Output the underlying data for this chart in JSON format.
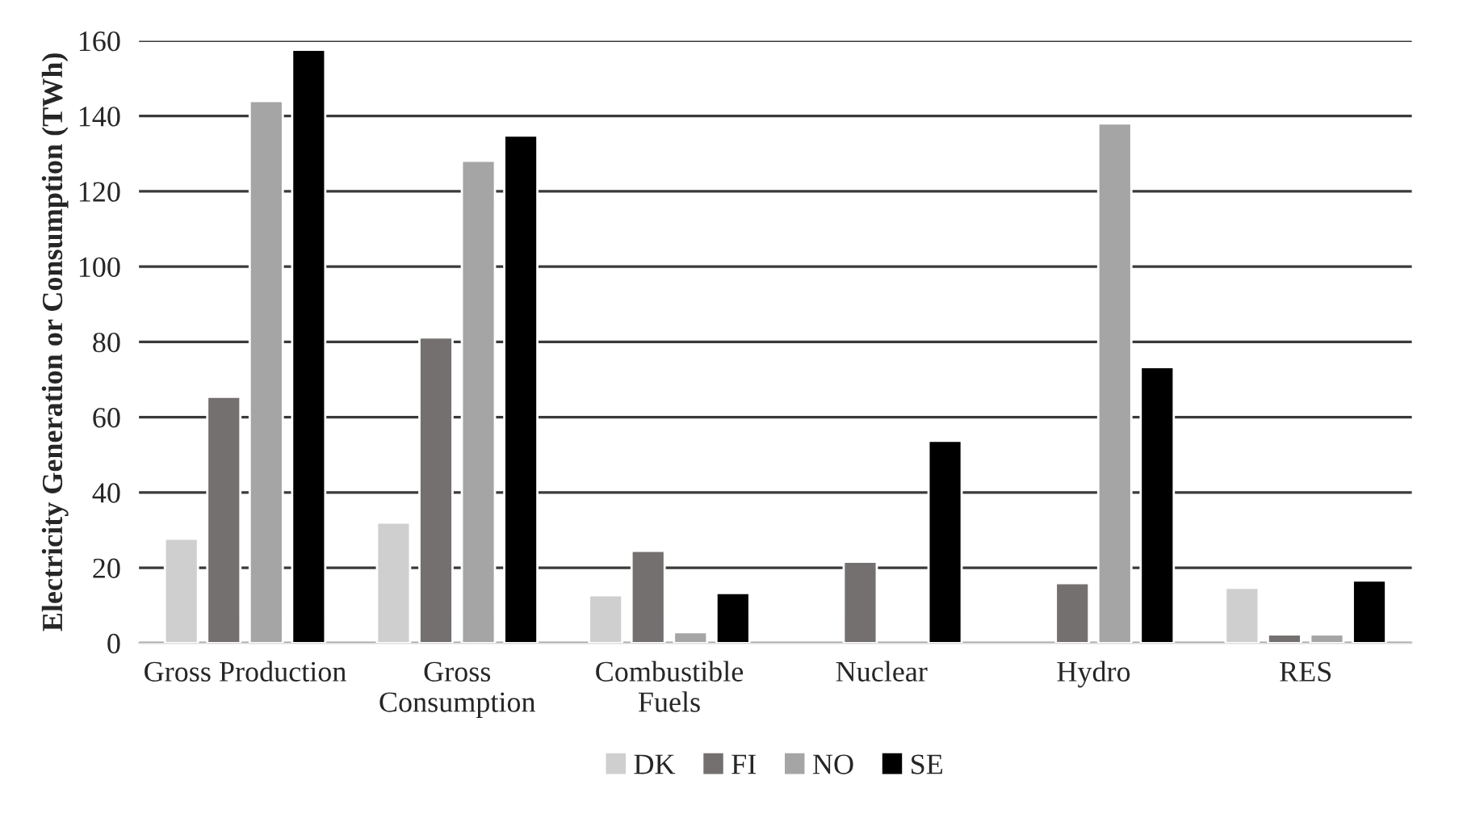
{
  "chart_data": {
    "type": "bar",
    "ylabel": "Electricity Generation or Consumption (TWh)",
    "categories": [
      "Gross Production",
      "Gross\nConsumption",
      "Combustible\nFuels",
      "Nuclear",
      "Hydro",
      "RES"
    ],
    "series": [
      {
        "name": "DK",
        "color": "#d0cfcf",
        "values": [
          27.7,
          32,
          12.7,
          null,
          null,
          14.7
        ]
      },
      {
        "name": "FI",
        "color": "#747070",
        "values": [
          65.4,
          81.2,
          24.5,
          21.6,
          15.9,
          2.3
        ]
      },
      {
        "name": "NO",
        "color": "#a5a5a5",
        "values": [
          144,
          128.1,
          2.9,
          null,
          138,
          2.3
        ]
      },
      {
        "name": "SE",
        "color": "#000000",
        "values": [
          157.6,
          134.8,
          13.3,
          53.7,
          73.3,
          16.6
        ]
      }
    ],
    "ylim": [
      0,
      160
    ],
    "yticks": [
      0,
      20,
      40,
      60,
      80,
      100,
      120,
      140,
      160
    ],
    "grid": "y",
    "legend": "bottom"
  }
}
